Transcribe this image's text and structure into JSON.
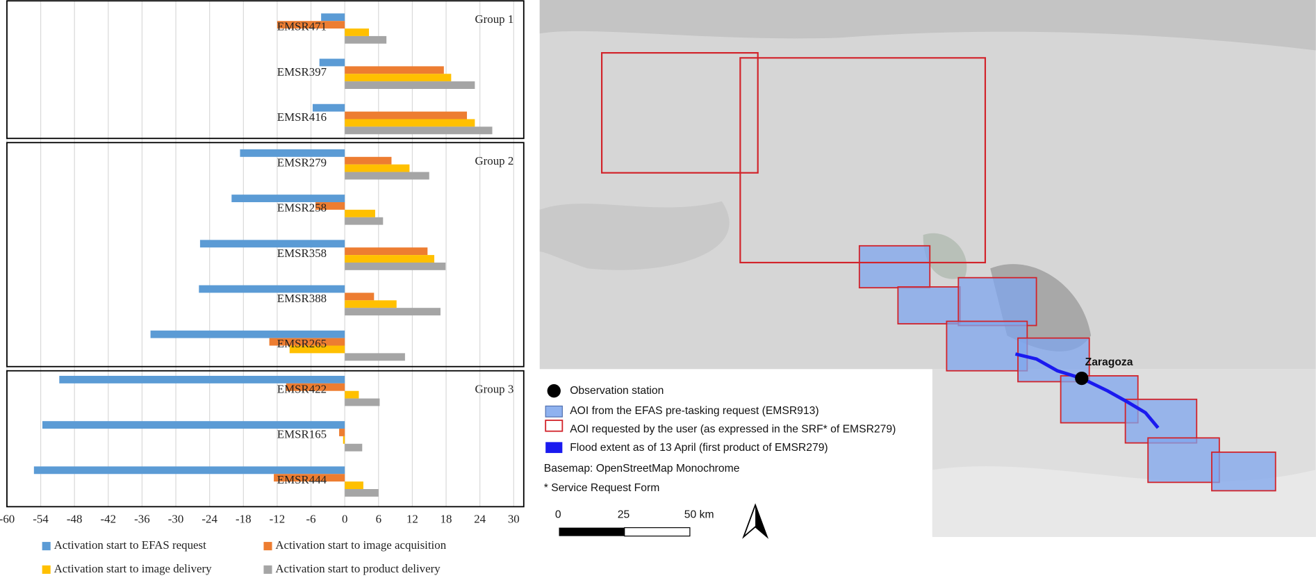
{
  "chart_data": {
    "type": "bar",
    "orientation": "horizontal",
    "xlim": [
      -60,
      30
    ],
    "xticks": [
      -60,
      -54,
      -48,
      -42,
      -36,
      -30,
      -24,
      -18,
      -12,
      -6,
      0,
      6,
      12,
      18,
      24,
      30
    ],
    "grid": true,
    "legend": "bottom",
    "series": [
      {
        "name": "Activation start to EFAS request",
        "color": "#5b9bd5"
      },
      {
        "name": "Activation start to image acquisition",
        "color": "#ed7d31"
      },
      {
        "name": "Activation start to image delivery",
        "color": "#ffc000"
      },
      {
        "name": "Activation start to product delivery",
        "color": "#a5a5a5"
      }
    ],
    "panels": [
      {
        "title": "Group 1",
        "categories": [
          "EMSR471",
          "EMSR397",
          "EMSR416"
        ],
        "values": [
          [
            -4.2,
            -12,
            4.3,
            7.4
          ],
          [
            -4.5,
            17.6,
            18.9,
            23.1
          ],
          [
            -5.7,
            21.7,
            23.1,
            26.2
          ]
        ]
      },
      {
        "title": "Group 2",
        "categories": [
          "EMSR279",
          "EMSR258",
          "EMSR358",
          "EMSR388",
          "EMSR265"
        ],
        "values": [
          [
            -18.6,
            8.3,
            11.5,
            15
          ],
          [
            -20.1,
            -5.2,
            5.4,
            6.8
          ],
          [
            -25.7,
            14.7,
            15.9,
            17.9
          ],
          [
            -25.9,
            5.2,
            9.2,
            17
          ],
          [
            -34.5,
            -13.4,
            -9.8,
            10.7
          ]
        ]
      },
      {
        "title": "Group 3",
        "categories": [
          "EMSR422",
          "EMSR165",
          "EMSR444"
        ],
        "values": [
          [
            -50.7,
            -10.4,
            2.5,
            6.2
          ],
          [
            -53.7,
            -1,
            -0.3,
            3.1
          ],
          [
            -55.2,
            -12.6,
            3.3,
            6
          ]
        ]
      }
    ]
  },
  "map": {
    "city_label": "Zaragoza",
    "legend": [
      "Observation station",
      "AOI from the EFAS pre-tasking request (EMSR913)",
      "AOI requested by the user (as expressed in the SRF* of EMSR279)",
      "Flood extent as of 13 April (first product of EMSR279)"
    ],
    "basemap": "Basemap: OpenStreetMap Monochrome",
    "footnote": "* Service Request Form",
    "scale_labels": [
      "0",
      "25",
      "50 km"
    ]
  }
}
